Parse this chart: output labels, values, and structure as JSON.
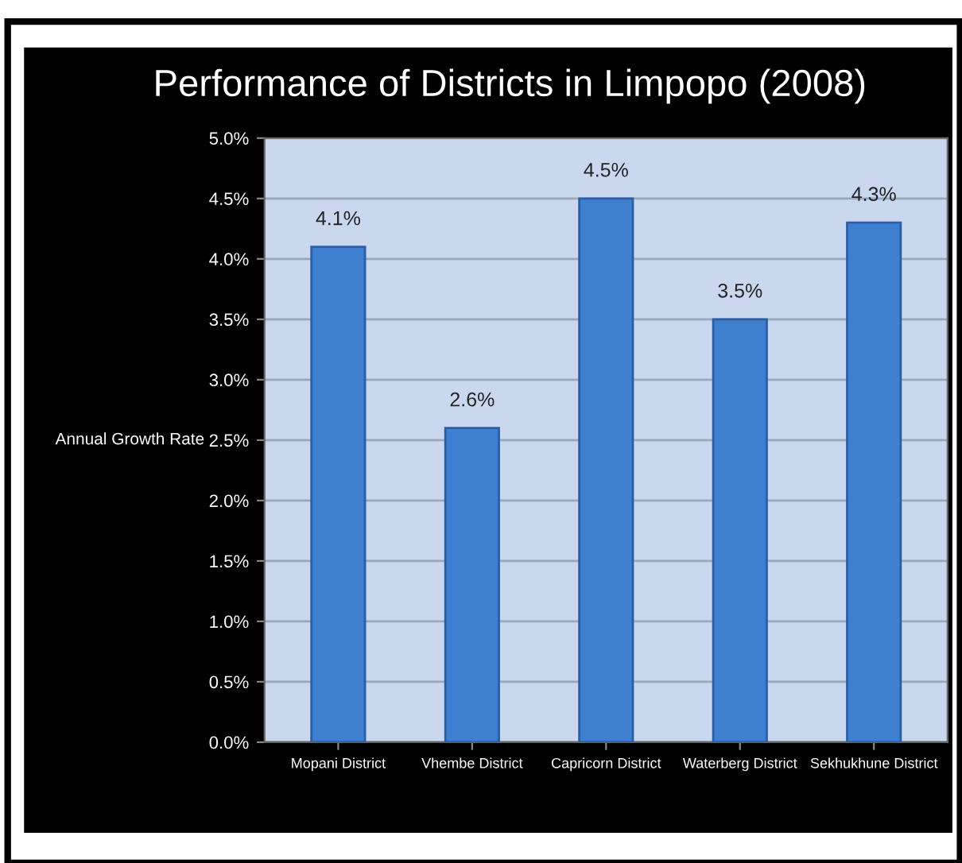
{
  "chart_data": {
    "type": "bar",
    "title": "Performance of Districts in Limpopo (2008)",
    "ylabel": "Annual Growth Rate",
    "categories": [
      "Mopani District",
      "Vhembe District",
      "Capricorn District",
      "Waterberg District",
      "Sekhukhune District"
    ],
    "values": [
      4.1,
      2.6,
      4.5,
      3.5,
      4.3
    ],
    "value_labels": [
      "4.1%",
      "2.6%",
      "4.5%",
      "3.5%",
      "4.3%"
    ],
    "color": "#3f7fcf",
    "ylim": [
      0,
      5
    ],
    "yticks": [
      {
        "value": 0,
        "label": "0.0%"
      },
      {
        "value": 0.5,
        "label": "0.5%"
      },
      {
        "value": 1,
        "label": "1.0%"
      },
      {
        "value": 1.5,
        "label": "1.5%"
      },
      {
        "value": 2,
        "label": "2.0%"
      },
      {
        "value": 2.5,
        "label": "2.5%"
      },
      {
        "value": 3,
        "label": "3.0%"
      },
      {
        "value": 3.5,
        "label": "3.5%"
      },
      {
        "value": 4,
        "label": "4.0%"
      },
      {
        "value": 4.5,
        "label": "4.5%"
      },
      {
        "value": 5,
        "label": "5.0%"
      }
    ],
    "grid": "y"
  }
}
